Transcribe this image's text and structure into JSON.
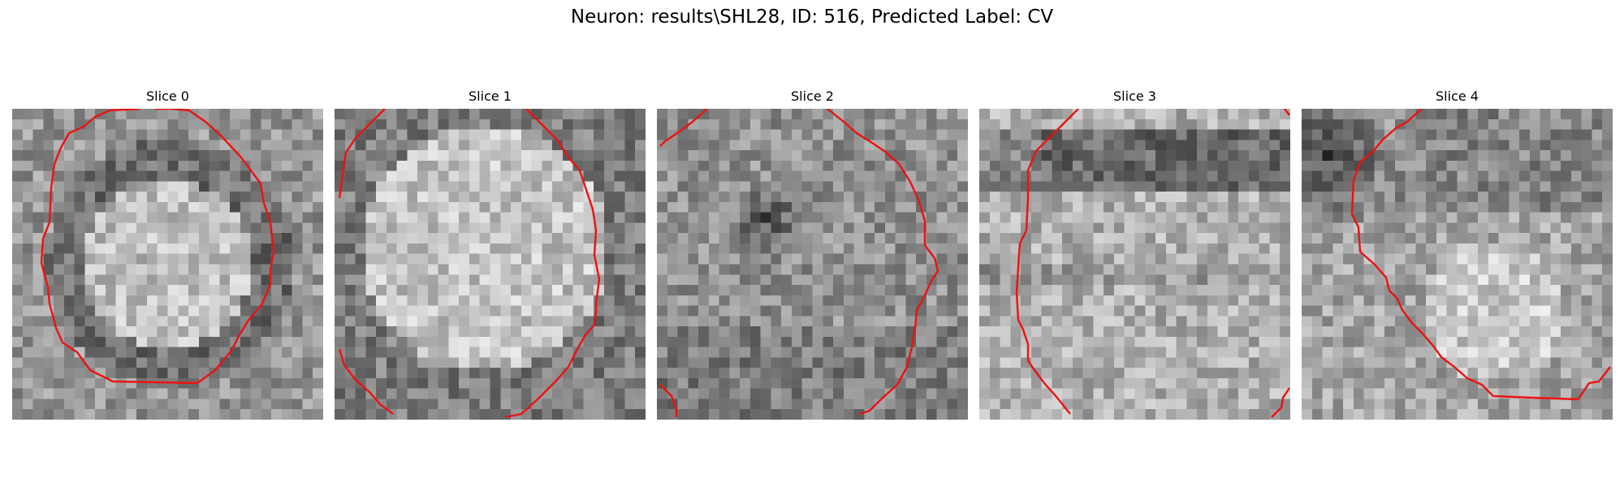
{
  "figure": {
    "title": "Neuron: results\\SHL28, ID: 516, Predicted Label: CV",
    "contour_color": "#ee1111"
  },
  "panels": [
    {
      "title": "Slice 0",
      "seed": 11,
      "pattern": "ring"
    },
    {
      "title": "Slice 1",
      "seed": 23,
      "pattern": "bright_disc"
    },
    {
      "title": "Slice 2",
      "seed": 37,
      "pattern": "noisy_dark_center"
    },
    {
      "title": "Slice 3",
      "seed": 41,
      "pattern": "dark_band_top"
    },
    {
      "title": "Slice 4",
      "seed": 59,
      "pattern": "dark_corner_top_left"
    }
  ]
}
